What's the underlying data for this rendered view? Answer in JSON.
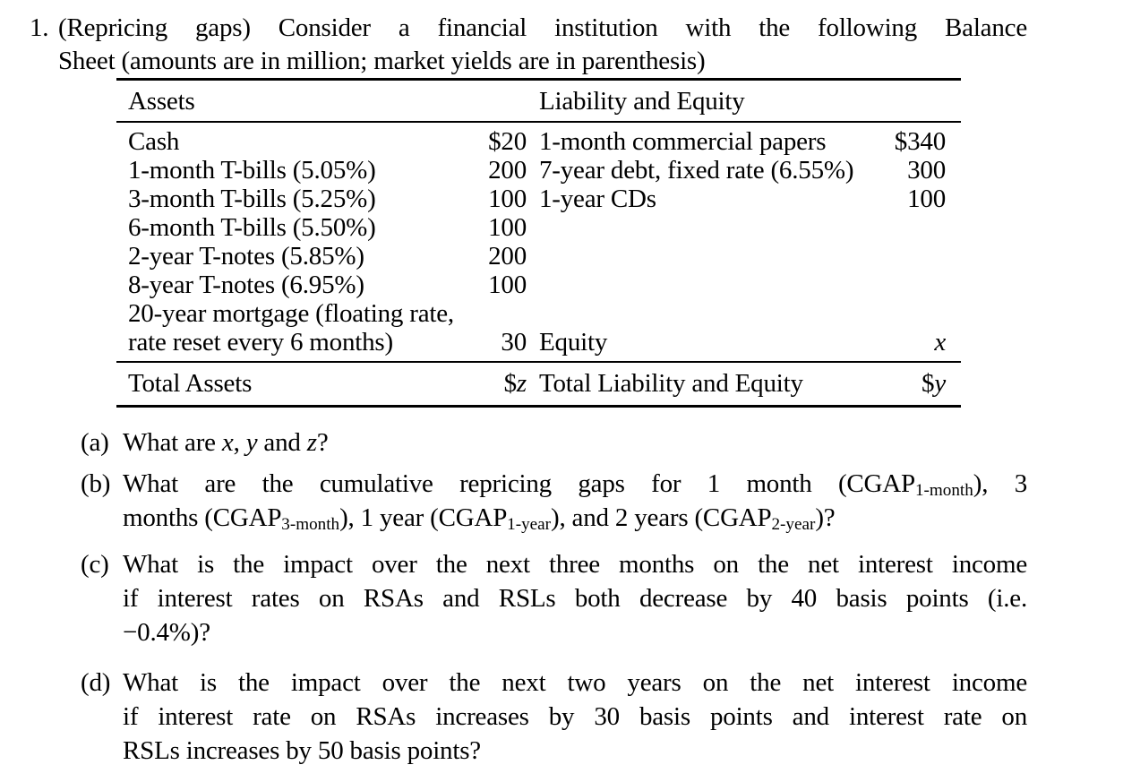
{
  "page": {
    "background": "#ffffff",
    "text_color": "#000000"
  },
  "problem": {
    "number": "1.",
    "title_line1": "(Repricing gaps) Consider a financial institution with the following Balance",
    "title_line2": "Sheet (amounts are in million; market yields are in parenthesis)"
  },
  "balance_sheet": {
    "assets_header": "Assets",
    "liabilities_header": "Liability and Equity",
    "rows": [
      {
        "a_label": "Cash",
        "a_amt": "$20",
        "l_label": "1-month commercial papers",
        "l_amt": "$340"
      },
      {
        "a_label": "1-month T-bills (5.05%)",
        "a_amt": "200",
        "l_label": "7-year debt, fixed rate (6.55%)",
        "l_amt": "300"
      },
      {
        "a_label": "3-month T-bills (5.25%)",
        "a_amt": "100",
        "l_label": "1-year CDs",
        "l_amt": "100"
      },
      {
        "a_label": "6-month T-bills (5.50%)",
        "a_amt": "100",
        "l_label": "",
        "l_amt": ""
      },
      {
        "a_label": "2-year T-notes (5.85%)",
        "a_amt": "200",
        "l_label": "",
        "l_amt": ""
      },
      {
        "a_label": "8-year T-notes (6.95%)",
        "a_amt": "100",
        "l_label": "",
        "l_amt": ""
      },
      {
        "a_label": "20-year mortgage (floating rate,",
        "a_amt": "",
        "l_label": "",
        "l_amt": ""
      },
      {
        "a_label": "rate reset every 6 months)",
        "a_amt": "30",
        "l_label": "Equity",
        "l_amt_var": "x"
      }
    ],
    "totals": {
      "assets_label": "Total Assets",
      "assets_amount_prefix": "$",
      "assets_amount_var": "z",
      "liabilities_label": "Total Liability and Equity",
      "liabilities_amount_prefix": "$",
      "liabilities_amount_var": "y"
    }
  },
  "questions": {
    "a": {
      "marker": "(a)",
      "pre": "What are ",
      "var1": "x",
      "sep1": ", ",
      "var2": "y",
      "sep2": " and ",
      "var3": "z",
      "post": "?"
    },
    "b": {
      "marker": "(b)",
      "line1_t1": "What are the cumulative repricing gaps for 1 month (CGAP",
      "line1_sub1": "1-month",
      "line1_t2": "), 3",
      "line2_t1": "months (CGAP",
      "line2_sub1": "3-month",
      "line2_t2": "), 1 year (CGAP",
      "line2_sub2": "1-year",
      "line2_t3": "), and 2 years (CGAP",
      "line2_sub3": "2-year",
      "line2_t4": ")?"
    },
    "c": {
      "marker": "(c)",
      "line1": "What is the impact over the next three months on the net interest income",
      "line2": "if interest rates on RSAs and RSLs both decrease by 40 basis points (i.e.",
      "line3": "−0.4%)?"
    },
    "d": {
      "marker": "(d)",
      "line1": "What is the impact over the next two years on the net interest income",
      "line2": "if interest rate on RSAs increases by 30 basis points and interest rate on",
      "line3": "RSLs increases by 50 basis points?"
    }
  }
}
